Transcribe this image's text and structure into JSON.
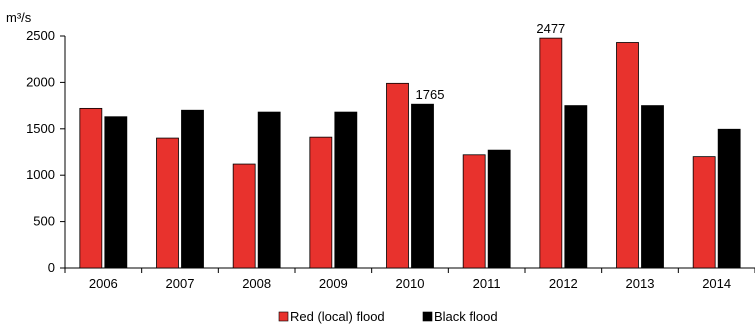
{
  "chart_data": {
    "type": "bar",
    "title": "",
    "xlabel": "",
    "ylabel": "m³/s",
    "ylim": [
      0,
      2500
    ],
    "yticks": [
      0,
      500,
      1000,
      1500,
      2000,
      2500
    ],
    "categories": [
      "2006",
      "2007",
      "2008",
      "2009",
      "2010",
      "2011",
      "2012",
      "2013",
      "2014"
    ],
    "series": [
      {
        "name": "Red (local) flood",
        "color": "#e8322d",
        "values": [
          1720,
          1400,
          1120,
          1410,
          1990,
          1220,
          2477,
          2430,
          1200
        ]
      },
      {
        "name": "Black flood",
        "color": "#000000",
        "values": [
          1630,
          1700,
          1680,
          1680,
          1765,
          1270,
          1750,
          1750,
          1495
        ]
      }
    ],
    "annotations": [
      {
        "series": 0,
        "index": 6,
        "text": "2477"
      },
      {
        "series": 1,
        "index": 4,
        "text": "1765"
      }
    ],
    "legend_position": "bottom-center",
    "grid": false
  }
}
